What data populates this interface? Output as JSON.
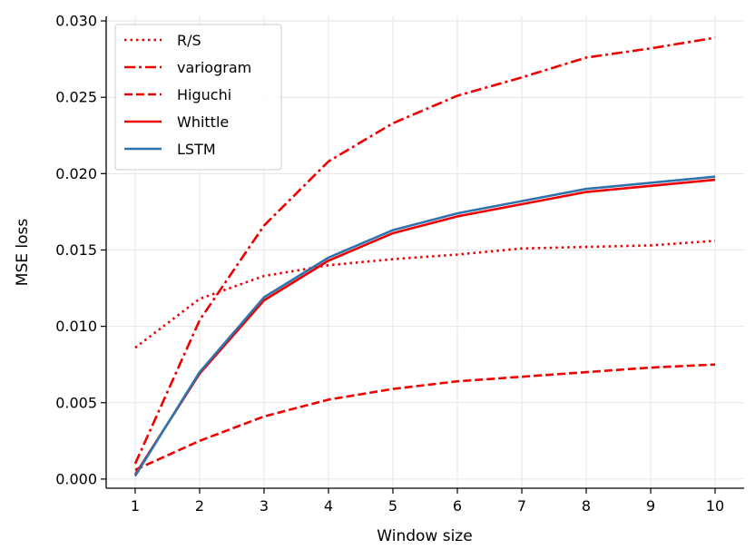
{
  "chart_data": {
    "type": "line",
    "title": "",
    "xlabel": "Window size",
    "ylabel": "MSE loss",
    "x": [
      1,
      2,
      3,
      4,
      5,
      6,
      7,
      8,
      9,
      10
    ],
    "xticks": [
      "1",
      "2",
      "3",
      "4",
      "5",
      "6",
      "7",
      "8",
      "9",
      "10"
    ],
    "yticks": [
      "0.000",
      "0.005",
      "0.010",
      "0.015",
      "0.020",
      "0.025",
      "0.030"
    ],
    "xlim": [
      0.55,
      10.45
    ],
    "ylim": [
      -0.0006,
      0.0303
    ],
    "grid": true,
    "legend_position": "upper-left",
    "series": [
      {
        "name": "R/S",
        "color": "#ee0000",
        "style": "dotted",
        "values": [
          0.0086,
          0.0118,
          0.0133,
          0.014,
          0.0144,
          0.0147,
          0.0151,
          0.0152,
          0.0153,
          0.0156
        ]
      },
      {
        "name": "variogram",
        "color": "#ee0000",
        "style": "dashdot",
        "values": [
          0.001,
          0.0104,
          0.0166,
          0.0208,
          0.0233,
          0.0251,
          0.0263,
          0.0276,
          0.0282,
          0.0289
        ]
      },
      {
        "name": "Higuchi",
        "color": "#ee0000",
        "style": "dashed",
        "values": [
          0.0006,
          0.0025,
          0.0041,
          0.0052,
          0.0059,
          0.0064,
          0.0067,
          0.007,
          0.0073,
          0.0075
        ]
      },
      {
        "name": "Whittle",
        "color": "#ee0000",
        "style": "solid",
        "values": [
          0.0003,
          0.0069,
          0.0117,
          0.0143,
          0.0161,
          0.0172,
          0.018,
          0.0188,
          0.0192,
          0.0196
        ]
      },
      {
        "name": "LSTM",
        "color": "#2f73ad",
        "style": "solid",
        "values": [
          0.0002,
          0.007,
          0.0119,
          0.0145,
          0.0163,
          0.0174,
          0.0182,
          0.019,
          0.0194,
          0.0198
        ]
      }
    ]
  }
}
